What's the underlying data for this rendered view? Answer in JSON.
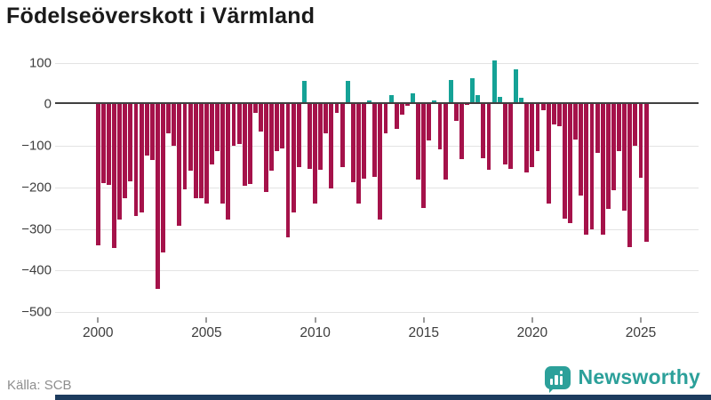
{
  "header": {
    "title": "Födelseöverskott i Värmland"
  },
  "footer": {
    "source": "Källa: SCB",
    "logo_text": "Newsworthy"
  },
  "colors": {
    "negative_bar": "#a5124a",
    "positive_bar": "#15a296",
    "logo_teal": "#2ca09a",
    "zero_line": "#404040",
    "gridline": "#e3e3e3",
    "axis_text": "#3d3d3d",
    "source_text": "#8e8e8e",
    "bottom_bar": "#1d3c5e",
    "title_text": "#1a1a1a"
  },
  "chart_data": {
    "type": "bar",
    "title": "Födelseöverskott i Värmland",
    "subtitle": "",
    "xlabel": "",
    "ylabel": "",
    "frequency": "quarterly",
    "ylim": [
      -500,
      120
    ],
    "grid": true,
    "legend_position": "none",
    "y_ticks": [
      {
        "value": 100,
        "label": "100"
      },
      {
        "value": 0,
        "label": "0"
      },
      {
        "value": -100,
        "label": "−100"
      },
      {
        "value": -200,
        "label": "−200"
      },
      {
        "value": -300,
        "label": "−300"
      },
      {
        "value": -400,
        "label": "−400"
      },
      {
        "value": -500,
        "label": "−500"
      }
    ],
    "x_ticks": [
      {
        "year": 2000,
        "label": "2000"
      },
      {
        "year": 2005,
        "label": "2005"
      },
      {
        "year": 2010,
        "label": "2010"
      },
      {
        "year": 2015,
        "label": "2015"
      },
      {
        "year": 2020,
        "label": "2020"
      },
      {
        "year": 2025,
        "label": "2025"
      }
    ],
    "series_by_year": [
      {
        "year": 2000,
        "values": [
          -340,
          -189,
          -194,
          -345
        ]
      },
      {
        "year": 2001,
        "values": [
          -277,
          -227,
          -186,
          -269
        ]
      },
      {
        "year": 2002,
        "values": [
          -260,
          -124,
          -134,
          -445
        ]
      },
      {
        "year": 2003,
        "values": [
          -357,
          -69,
          -100,
          -293
        ]
      },
      {
        "year": 2004,
        "values": [
          -204,
          -159,
          -227,
          -227
        ]
      },
      {
        "year": 2005,
        "values": [
          -238,
          -145,
          -113,
          -240
        ]
      },
      {
        "year": 2006,
        "values": [
          -277,
          -99,
          -95,
          -197
        ]
      },
      {
        "year": 2007,
        "values": [
          -191,
          -20,
          -66,
          -211
        ]
      },
      {
        "year": 2008,
        "values": [
          -159,
          -113,
          -106,
          -320
        ]
      },
      {
        "year": 2009,
        "values": [
          -261,
          -152,
          56,
          -156
        ]
      },
      {
        "year": 2010,
        "values": [
          -238,
          -157,
          -69,
          -202
        ]
      },
      {
        "year": 2011,
        "values": [
          -21,
          -152,
          56,
          -188
        ]
      },
      {
        "year": 2012,
        "values": [
          -238,
          -179,
          9,
          -174
        ]
      },
      {
        "year": 2013,
        "values": [
          -277,
          -70,
          23,
          -60
        ]
      },
      {
        "year": 2014,
        "values": [
          -26,
          -4,
          26,
          -181
        ]
      },
      {
        "year": 2015,
        "values": [
          -249,
          -86,
          10,
          -109
        ]
      },
      {
        "year": 2016,
        "values": [
          -181,
          59,
          -41,
          -131
        ]
      },
      {
        "year": 2017,
        "values": [
          -2,
          62,
          21,
          -129
        ]
      },
      {
        "year": 2018,
        "values": [
          -158,
          105,
          18,
          -145
        ]
      },
      {
        "year": 2019,
        "values": [
          -156,
          84,
          16,
          -164
        ]
      },
      {
        "year": 2020,
        "values": [
          -151,
          -113,
          -15,
          -238
        ]
      },
      {
        "year": 2021,
        "values": [
          -49,
          -52,
          -275,
          -286
        ]
      },
      {
        "year": 2022,
        "values": [
          -84,
          -220,
          -313,
          -300
        ]
      },
      {
        "year": 2023,
        "values": [
          -118,
          -314,
          -252,
          -207
        ]
      },
      {
        "year": 2024,
        "values": [
          -113,
          -257,
          -343,
          -99
        ]
      },
      {
        "year": 2025,
        "values": [
          -177,
          -331
        ]
      }
    ]
  }
}
